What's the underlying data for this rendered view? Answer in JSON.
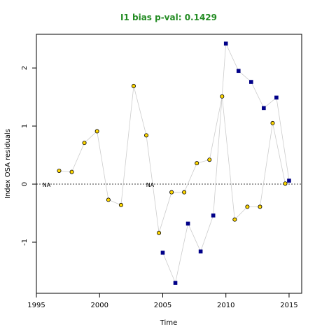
{
  "chart_data": {
    "type": "scatter",
    "title": "I1 bias p-val: 0.1429",
    "title_color": "#228B22",
    "xlabel": "Time",
    "ylabel": "Index OSA residuals",
    "xlim": [
      1995,
      2016
    ],
    "ylim": [
      -1.88,
      2.58
    ],
    "x_ticks": [
      1995,
      2000,
      2005,
      2010,
      2015
    ],
    "y_ticks": [
      -1,
      0,
      1,
      2
    ],
    "reference_line": 0,
    "grid": false,
    "na_labels": [
      {
        "x": 1995.8,
        "text": "NA"
      },
      {
        "x": 2004.0,
        "text": "NA"
      }
    ],
    "series": [
      {
        "marker": "circle",
        "color": "#FFD700",
        "stroke": "#000000",
        "line_color": "#cccccc",
        "points": [
          [
            1996.8,
            0.23
          ],
          [
            1997.8,
            0.21
          ],
          [
            1998.8,
            0.71
          ],
          [
            1999.8,
            0.91
          ],
          [
            2000.7,
            -0.27
          ],
          [
            2001.7,
            -0.36
          ],
          [
            2002.7,
            1.69
          ],
          [
            2003.7,
            0.84
          ],
          [
            2004.7,
            -0.84
          ],
          [
            2005.7,
            -0.14
          ],
          [
            2006.7,
            -0.14
          ],
          [
            2007.7,
            0.36
          ],
          [
            2008.7,
            0.42
          ],
          [
            2009.7,
            1.51
          ],
          [
            2010.7,
            -0.61
          ],
          [
            2011.7,
            -0.39
          ],
          [
            2012.7,
            -0.39
          ],
          [
            2013.7,
            1.05
          ],
          [
            2014.7,
            0.01
          ]
        ]
      },
      {
        "marker": "square",
        "color": "#00008B",
        "stroke": "#000080",
        "line_color": "#cccccc",
        "points": [
          [
            2005.0,
            -1.18
          ],
          [
            2006.0,
            -1.7
          ],
          [
            2007.0,
            -0.68
          ],
          [
            2008.0,
            -1.16
          ],
          [
            2009.0,
            -0.54
          ],
          [
            2010.0,
            2.42
          ],
          [
            2011.0,
            1.95
          ],
          [
            2012.0,
            1.76
          ],
          [
            2013.0,
            1.31
          ],
          [
            2014.0,
            1.49
          ],
          [
            2015.0,
            0.06
          ]
        ]
      }
    ]
  }
}
